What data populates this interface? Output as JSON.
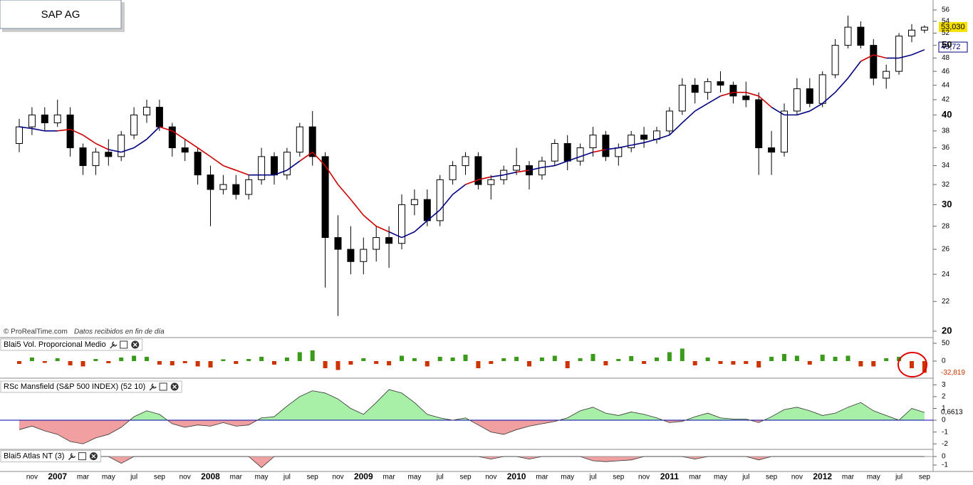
{
  "header": {
    "title": "SAP AG"
  },
  "chart_data": [
    {
      "type": "candlestick",
      "categories": [
        null,
        "nov",
        null,
        "2007",
        null,
        "mar",
        null,
        "may",
        null,
        "jul",
        null,
        "sep",
        null,
        "nov",
        null,
        "2008",
        null,
        "mar",
        null,
        "may",
        null,
        "jul",
        null,
        "sep",
        null,
        "nov",
        null,
        "2009",
        null,
        "mar",
        null,
        "may",
        null,
        "jul",
        null,
        "sep",
        null,
        "nov",
        null,
        "2010",
        null,
        "mar",
        null,
        "may",
        null,
        "jul",
        null,
        "sep",
        null,
        "nov",
        null,
        "2011",
        null,
        "mar",
        null,
        "may",
        null,
        "jul",
        null,
        "sep",
        null,
        "nov",
        null,
        "2012",
        null,
        "mar",
        null,
        "may",
        null,
        "jul",
        null,
        "sep"
      ],
      "open": [
        36.5,
        38.5,
        40,
        39,
        40,
        36,
        34,
        35.5,
        35,
        37.5,
        40,
        41,
        38.5,
        36,
        35.5,
        33,
        31.5,
        32,
        31,
        32.5,
        35,
        33,
        35.5,
        38.5,
        35,
        27,
        26,
        25,
        26,
        27,
        26.5,
        30,
        30.5,
        28.5,
        32.5,
        34,
        35,
        32,
        32.5,
        33.5,
        34,
        33,
        34.5,
        36.5,
        34.5,
        36,
        37.5,
        35,
        36,
        37.5,
        37,
        38,
        40.5,
        44,
        43,
        44.5,
        44,
        42.5,
        42,
        36,
        35.5,
        40.5,
        43.5,
        41.5,
        45.5,
        50,
        53,
        50,
        45,
        46,
        51.5,
        52.5
      ],
      "high": [
        39.5,
        41,
        41,
        42,
        41,
        36.5,
        36,
        37,
        38,
        41,
        42,
        42,
        39,
        37,
        36,
        34,
        33,
        33,
        33,
        36,
        35.5,
        36,
        39,
        40.5,
        35.5,
        29,
        28,
        27,
        28,
        28,
        31,
        31.5,
        31.5,
        33,
        34.5,
        35.5,
        35.5,
        33,
        34,
        36,
        34.5,
        35,
        37,
        37.5,
        36.5,
        38.5,
        38,
        36.5,
        38,
        38.5,
        38.5,
        41,
        45,
        45,
        45,
        46,
        44.5,
        44.5,
        43,
        38,
        41.5,
        45,
        45,
        46,
        51,
        55,
        54,
        51,
        47,
        52,
        53.5,
        53.3
      ],
      "low": [
        35.5,
        37.5,
        38,
        38.5,
        35,
        33,
        33,
        34,
        34.5,
        37,
        39,
        38,
        35,
        34.5,
        32,
        28,
        31,
        30.5,
        30.5,
        32,
        32,
        32.5,
        35,
        34,
        23,
        21,
        24,
        24,
        25,
        24.5,
        26,
        29,
        28,
        28,
        32,
        33,
        31.5,
        30.5,
        32,
        33,
        31.5,
        32.5,
        34,
        33.5,
        34,
        35,
        34.5,
        34,
        35.5,
        36,
        36.5,
        37.5,
        40,
        41.5,
        42,
        43,
        41.5,
        41,
        33,
        33,
        35,
        40,
        41,
        41,
        45,
        49.5,
        49.5,
        44,
        43.5,
        45.5,
        50.5,
        52
      ],
      "close": [
        38.5,
        40,
        39,
        40,
        36,
        34,
        35.5,
        35,
        37.5,
        40,
        41,
        38.5,
        36,
        35.5,
        33,
        31.5,
        32,
        31,
        32.5,
        35,
        33,
        35.5,
        38.5,
        35,
        27,
        26,
        25,
        26,
        27,
        26.5,
        30,
        30.5,
        28.5,
        32.5,
        34,
        35,
        32,
        32.5,
        33.5,
        34,
        33,
        34.5,
        36.5,
        34.5,
        36,
        37.5,
        35,
        36,
        37.5,
        37,
        38,
        40.5,
        44,
        43,
        44.5,
        44,
        42.5,
        42,
        36,
        35.5,
        40.5,
        43.5,
        41.5,
        45.5,
        50,
        53,
        50,
        45,
        46,
        51.5,
        52.5,
        53
      ],
      "up_color": "#ffffff",
      "down_color": "#000000",
      "ma": {
        "values": [
          38.5,
          38.3,
          38,
          38,
          38.2,
          37.5,
          36.5,
          35.8,
          35.5,
          36,
          37,
          38.5,
          38,
          37,
          36,
          35,
          34,
          33.5,
          33,
          33,
          33,
          33.5,
          34.5,
          35.5,
          34,
          32,
          30.5,
          29,
          28,
          27.5,
          27,
          27.5,
          28.5,
          29.5,
          31,
          32,
          32.5,
          32.8,
          33,
          33.3,
          33.5,
          33.8,
          34,
          34.5,
          35,
          35.5,
          35.8,
          36,
          36.3,
          36.6,
          37,
          37.5,
          39,
          40.5,
          41.5,
          42.5,
          43,
          43,
          42.5,
          41,
          40,
          40,
          40.5,
          41.5,
          43,
          45,
          47.5,
          48.5,
          48,
          48,
          48.5,
          49.3
        ],
        "color_above": "#000080",
        "color_below": "#cc0000"
      },
      "ylim": [
        20,
        56
      ],
      "log_scale": true,
      "yticks": [
        20,
        22,
        24,
        26,
        28,
        30,
        32,
        34,
        36,
        38,
        40,
        42,
        44,
        46,
        48,
        50,
        52,
        54,
        56
      ],
      "last_price": {
        "value": 53.03,
        "label": "53,030"
      },
      "ma_last": {
        "value": 49.72,
        "label": "49,72"
      },
      "source": "© ProRealTime.com",
      "note": "Datos recibidos en fin de día"
    },
    {
      "type": "bar",
      "title": "Blai5 Vol. Proporcional Medio",
      "values": [
        -8,
        10,
        -5,
        8,
        -12,
        -15,
        6,
        -6,
        10,
        15,
        12,
        -10,
        -12,
        -6,
        -15,
        -18,
        5,
        -8,
        6,
        12,
        -10,
        10,
        25,
        30,
        -20,
        -25,
        -10,
        8,
        -8,
        -12,
        15,
        8,
        -15,
        12,
        10,
        18,
        -20,
        -8,
        8,
        12,
        -15,
        10,
        15,
        -20,
        8,
        20,
        -12,
        6,
        14,
        -8,
        10,
        25,
        35,
        -12,
        10,
        -8,
        -10,
        -8,
        -18,
        12,
        20,
        15,
        -10,
        18,
        12,
        15,
        -15,
        -15,
        8,
        12,
        -20,
        -32.819
      ],
      "pos_color": "#3a9a1a",
      "neg_color": "#cc3300",
      "ylim": [
        -50,
        50
      ],
      "yticks": [
        0,
        50
      ],
      "last_value": {
        "value": -32.819,
        "label": "-32,819"
      }
    },
    {
      "type": "area",
      "title": "RSc Mansfield (S&P 500 INDEX) (52 10)",
      "values": [
        -0.8,
        -0.5,
        -0.9,
        -1.2,
        -1.8,
        -2,
        -1.5,
        -1.2,
        -0.6,
        0.3,
        0.8,
        0.5,
        -0.3,
        -0.6,
        -0.4,
        -0.5,
        -0.2,
        -0.5,
        -0.4,
        0.2,
        0.3,
        1.2,
        2,
        2.5,
        2.3,
        1.8,
        1,
        0.5,
        1.5,
        2.6,
        2.3,
        1.5,
        0.5,
        0.2,
        0,
        0.2,
        -0.4,
        -1,
        -1.2,
        -0.8,
        -0.5,
        -0.3,
        -0.1,
        0.2,
        0.8,
        1.1,
        0.6,
        0.4,
        0.7,
        0.5,
        0.2,
        -0.2,
        -0.1,
        0.3,
        0.6,
        0.2,
        0.1,
        0.1,
        -0.2,
        0.3,
        0.9,
        1.1,
        0.8,
        0.4,
        0.6,
        1.1,
        1.5,
        0.8,
        0.4,
        0,
        1,
        0.6613
      ],
      "pos_color": "#a8f0a8",
      "neg_color": "#f0a0a0",
      "zero_color": "#0000aa",
      "ylim": [
        -2.5,
        3.2
      ],
      "yticks": [
        -2,
        -1,
        0,
        1,
        2,
        3
      ],
      "last_value": {
        "value": 0.6613,
        "label": "0,6613"
      }
    },
    {
      "type": "area",
      "title": "Blai5 Atlas NT (3)",
      "values": [
        0,
        0,
        0,
        0,
        0,
        0,
        0,
        0,
        -0.8,
        0,
        0,
        0,
        0,
        0,
        0,
        0,
        0,
        0,
        0,
        -1.3,
        0,
        0,
        0,
        0,
        0,
        0,
        0,
        0,
        0,
        0,
        0,
        0,
        0,
        0,
        0,
        0,
        0,
        -0.3,
        0,
        0,
        -0.3,
        0,
        0,
        0,
        0,
        -0.5,
        -0.6,
        -0.5,
        -0.4,
        0,
        0,
        0,
        0,
        -0.3,
        0,
        0,
        0,
        0,
        -0.4,
        0,
        0,
        0,
        0,
        0,
        0,
        0,
        0,
        0,
        0,
        0,
        0,
        0
      ],
      "pos_color": "#a8f0a8",
      "neg_color": "#f0a0a0",
      "zero_color": "#999999",
      "ylim": [
        -1.8,
        0.7
      ],
      "yticks": [
        -1,
        0
      ]
    }
  ]
}
